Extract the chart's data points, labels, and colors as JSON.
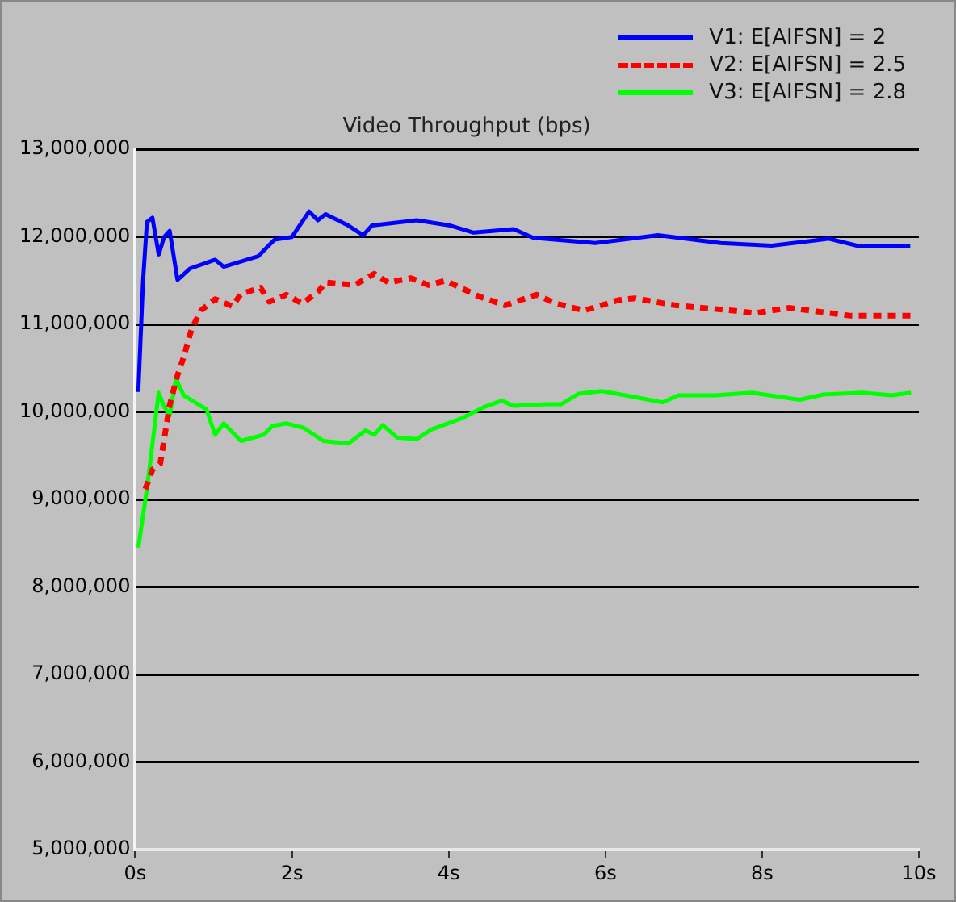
{
  "chart_data": {
    "type": "line",
    "title": "Video Throughput (bps)",
    "xlim": [
      0,
      10
    ],
    "xticks": [
      {
        "value": 0,
        "label": "0s"
      },
      {
        "value": 2,
        "label": "2s"
      },
      {
        "value": 4,
        "label": "4s"
      },
      {
        "value": 6,
        "label": "6s"
      },
      {
        "value": 8,
        "label": "8s"
      },
      {
        "value": 10,
        "label": "10s"
      }
    ],
    "ylim": [
      5000000,
      13000000
    ],
    "yticks": [
      {
        "value": 5000000,
        "label": "5,000,000"
      },
      {
        "value": 6000000,
        "label": "6,000,000"
      },
      {
        "value": 7000000,
        "label": "7,000,000"
      },
      {
        "value": 8000000,
        "label": "8,000,000"
      },
      {
        "value": 9000000,
        "label": "9,000,000"
      },
      {
        "value": 10000000,
        "label": "10,000,000"
      },
      {
        "value": 11000000,
        "label": "11,000,000"
      },
      {
        "value": 12000000,
        "label": "12,000,000"
      },
      {
        "value": 13000000,
        "label": "13,000,000"
      }
    ],
    "grid": "y",
    "legend": "top right",
    "marker": "none",
    "series": [
      {
        "name": "V1: E[AIFSN] = 2",
        "color": "#0000ff",
        "line_style": "solid",
        "x": [
          0.04,
          0.1,
          0.15,
          0.22,
          0.3,
          0.37,
          0.44,
          0.54,
          0.7,
          1.02,
          1.13,
          1.57,
          1.78,
          2.0,
          2.22,
          2.33,
          2.43,
          2.72,
          2.91,
          3.02,
          3.59,
          4.02,
          4.32,
          4.83,
          5.08,
          5.87,
          6.67,
          7.47,
          8.12,
          8.85,
          9.21,
          9.89
        ],
        "values": [
          10230000,
          11490000,
          12170000,
          12220000,
          11800000,
          12000000,
          12070000,
          11510000,
          11640000,
          11740000,
          11660000,
          11780000,
          11970000,
          12000000,
          12290000,
          12190000,
          12260000,
          12130000,
          12020000,
          12130000,
          12190000,
          12130000,
          12050000,
          12090000,
          11990000,
          11930000,
          12020000,
          11930000,
          11900000,
          11980000,
          11900000,
          11900000
        ]
      },
      {
        "name": "V2: E[AIFSN] = 2.5",
        "color": "#ff0000",
        "line_style": "dashed",
        "x": [
          0.13,
          0.22,
          0.32,
          0.44,
          0.54,
          0.62,
          0.72,
          0.84,
          1.02,
          1.24,
          1.35,
          1.6,
          1.71,
          1.93,
          2.13,
          2.33,
          2.43,
          2.8,
          3.05,
          3.23,
          3.52,
          3.74,
          3.96,
          4.39,
          4.72,
          5.12,
          5.37,
          5.73,
          6.17,
          6.38,
          6.89,
          7.61,
          7.91,
          8.34,
          8.7,
          9.13,
          9.93
        ],
        "values": [
          9120000,
          9340000,
          9410000,
          10080000,
          10420000,
          10630000,
          10950000,
          11160000,
          11290000,
          11210000,
          11350000,
          11420000,
          11260000,
          11340000,
          11240000,
          11370000,
          11480000,
          11450000,
          11580000,
          11480000,
          11530000,
          11450000,
          11500000,
          11320000,
          11220000,
          11340000,
          11240000,
          11160000,
          11280000,
          11300000,
          11220000,
          11160000,
          11130000,
          11190000,
          11150000,
          11100000,
          11100000
        ]
      },
      {
        "name": "V3: E[AIFSN] = 2.8",
        "color": "#00ff00",
        "line_style": "solid",
        "x": [
          0.04,
          0.15,
          0.3,
          0.37,
          0.44,
          0.52,
          0.62,
          0.91,
          1.02,
          1.13,
          1.35,
          1.64,
          1.75,
          1.93,
          2.15,
          2.4,
          2.72,
          2.94,
          3.05,
          3.16,
          3.34,
          3.59,
          3.78,
          4.17,
          4.46,
          4.68,
          4.83,
          5.26,
          5.44,
          5.66,
          5.95,
          6.38,
          6.73,
          6.93,
          7.4,
          7.87,
          8.48,
          8.78,
          9.28,
          9.65,
          9.9
        ],
        "values": [
          8450000,
          9120000,
          10220000,
          10060000,
          9960000,
          10380000,
          10190000,
          10030000,
          9740000,
          9870000,
          9670000,
          9740000,
          9840000,
          9870000,
          9820000,
          9670000,
          9640000,
          9790000,
          9740000,
          9850000,
          9710000,
          9690000,
          9800000,
          9930000,
          10060000,
          10130000,
          10070000,
          10090000,
          10090000,
          10210000,
          10240000,
          10170000,
          10110000,
          10190000,
          10190000,
          10220000,
          10140000,
          10200000,
          10220000,
          10190000,
          10220000
        ]
      }
    ]
  }
}
